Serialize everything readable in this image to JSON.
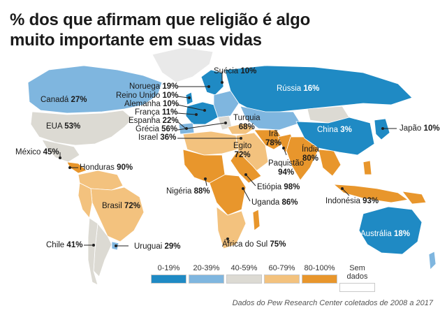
{
  "title_line1": "% dos que afirmam que religião é algo",
  "title_line2": "muito importante em suas vidas",
  "countries": [
    {
      "name": "Suécia",
      "value": "10%"
    },
    {
      "name": "Noruega",
      "value": "19%"
    },
    {
      "name": "Reino Unido",
      "value": "10%"
    },
    {
      "name": "Alemanha",
      "value": "10%"
    },
    {
      "name": "França",
      "value": "11%"
    },
    {
      "name": "Espanha",
      "value": "22%"
    },
    {
      "name": "Grécia",
      "value": "56%"
    },
    {
      "name": "Israel",
      "value": "36%"
    },
    {
      "name": "Rússia",
      "value": "16%"
    },
    {
      "name": "Canadá",
      "value": "27%"
    },
    {
      "name": "EUA",
      "value": "53%"
    },
    {
      "name": "México",
      "value": "45%"
    },
    {
      "name": "Honduras",
      "value": "90%"
    },
    {
      "name": "Brasil",
      "value": "72%"
    },
    {
      "name": "Chile",
      "value": "41%"
    },
    {
      "name": "Uruguai",
      "value": "29%"
    },
    {
      "name": "Turquia",
      "value": "68%"
    },
    {
      "name": "Irã",
      "value": "78%"
    },
    {
      "name": "Egito",
      "value": "72%"
    },
    {
      "name": "Índia",
      "value": "80%"
    },
    {
      "name": "Paquistão",
      "value": "94%"
    },
    {
      "name": "China",
      "value": "3%"
    },
    {
      "name": "Japão",
      "value": "10%"
    },
    {
      "name": "Indonésia",
      "value": "93%"
    },
    {
      "name": "Austrália",
      "value": "18%"
    },
    {
      "name": "Nigéria",
      "value": "88%"
    },
    {
      "name": "Etiópia",
      "value": "98%"
    },
    {
      "name": "Uganda",
      "value": "86%"
    },
    {
      "name": "África do Sul",
      "value": "75%"
    }
  ],
  "legend": [
    {
      "label": "0-19%",
      "color": "#1f8ac4"
    },
    {
      "label": "20-39%",
      "color": "#7fb6df"
    },
    {
      "label": "40-59%",
      "color": "#dcdad3"
    },
    {
      "label": "60-79%",
      "color": "#f3c27e"
    },
    {
      "label": "80-100%",
      "color": "#e8962c"
    },
    {
      "label": "Sem dados",
      "color": "#ffffff"
    }
  ],
  "source": "Dados do Pew Research Center coletados de 2008 a 2017"
}
